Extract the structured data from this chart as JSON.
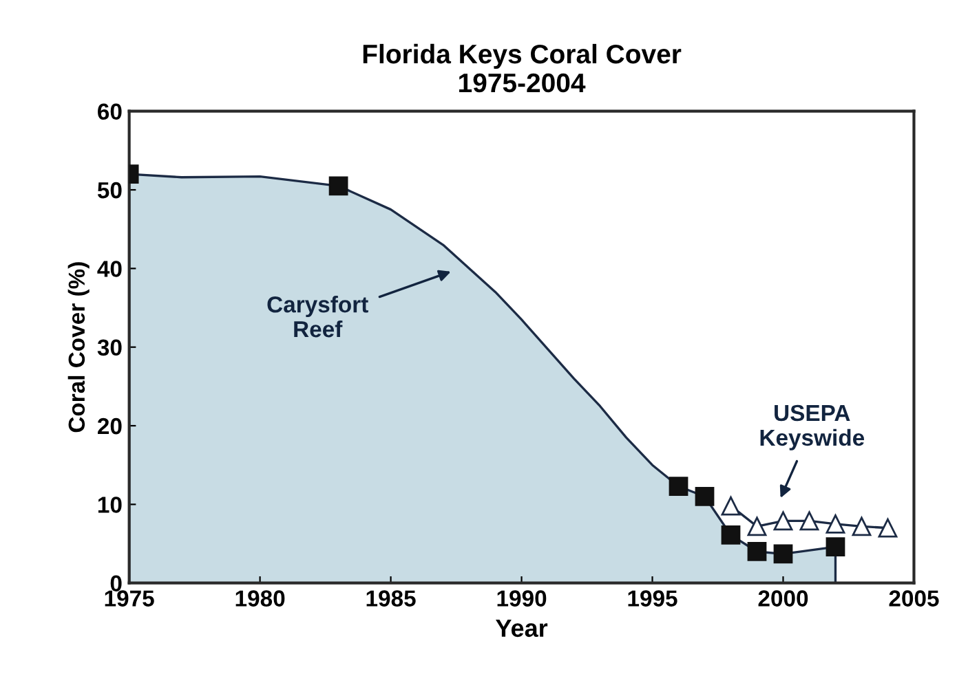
{
  "chart_data": {
    "type": "area",
    "title": "Florida Keys Coral Cover\n1975-2004",
    "xlabel": "Year",
    "ylabel": "Coral Cover (%)",
    "xlim": [
      1975,
      2005
    ],
    "xticks": [
      1975,
      1980,
      1985,
      1990,
      1995,
      2000,
      2005
    ],
    "ylim": [
      0,
      60
    ],
    "yticks": [
      0,
      10,
      20,
      30,
      40,
      50,
      60
    ],
    "grid": false,
    "legend": false,
    "series": [
      {
        "color": "#c8dce4",
        "x": [
          1975,
          1977,
          1980,
          1983,
          1985,
          1987,
          1989,
          1990,
          1992,
          1993,
          1994,
          1995,
          1996,
          1997,
          1998,
          1999,
          2000,
          2002
        ],
        "values": [
          52,
          51.6,
          51.7,
          50.5,
          47.5,
          43,
          37,
          33.5,
          26,
          22.5,
          18.5,
          15,
          12.3,
          11,
          6.1,
          4,
          3.7,
          4.6
        ]
      },
      {
        "type": "scatter",
        "color": "#111111",
        "marker": "square",
        "x": [
          1975,
          1983,
          1996,
          1997,
          1998,
          1999,
          2000,
          2002
        ],
        "values": [
          52,
          50.5,
          12.3,
          11,
          6.1,
          4,
          3.7,
          4.6
        ]
      },
      {
        "type": "line",
        "color": "#1c2b45",
        "marker": "triangle",
        "x": [
          1998,
          1999,
          2000,
          2001,
          2002,
          2003,
          2004
        ],
        "values": [
          9.8,
          7.2,
          7.9,
          7.9,
          7.5,
          7.2,
          7.0
        ]
      }
    ],
    "annotations": [
      "Carysfort\nReef",
      "USEPA\nKeyswide"
    ]
  }
}
